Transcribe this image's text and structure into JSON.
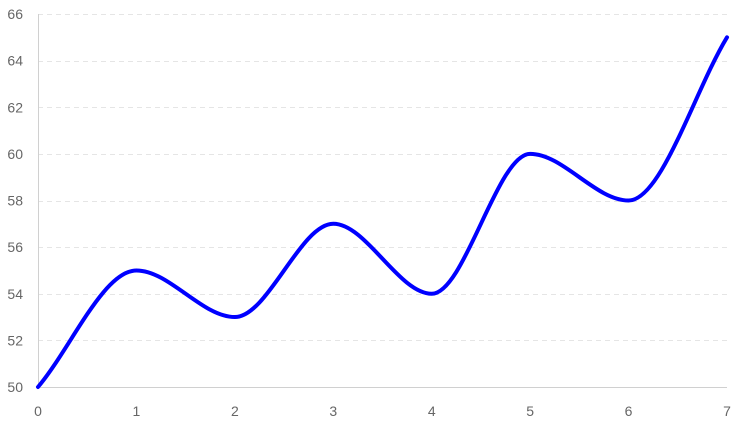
{
  "chart_data": {
    "type": "line",
    "title": "",
    "xlabel": "",
    "ylabel": "",
    "x": [
      0,
      1,
      2,
      3,
      4,
      5,
      6,
      7
    ],
    "series": [
      {
        "values": [
          50,
          55,
          53,
          57,
          54,
          60,
          58,
          65
        ],
        "color": "#0000ff"
      }
    ],
    "xlim": [
      0,
      7
    ],
    "ylim": [
      50,
      66
    ],
    "yticks": [
      50,
      52,
      54,
      56,
      58,
      60,
      62,
      64,
      66
    ],
    "xticks": [
      0,
      1,
      2,
      3,
      4,
      5,
      6,
      7
    ],
    "grid": "horizontal dashed",
    "gridColor": "#e5e5e5",
    "axisColor": "#d0d0d0",
    "tickLabelColor": "#666666",
    "smooth": true
  }
}
